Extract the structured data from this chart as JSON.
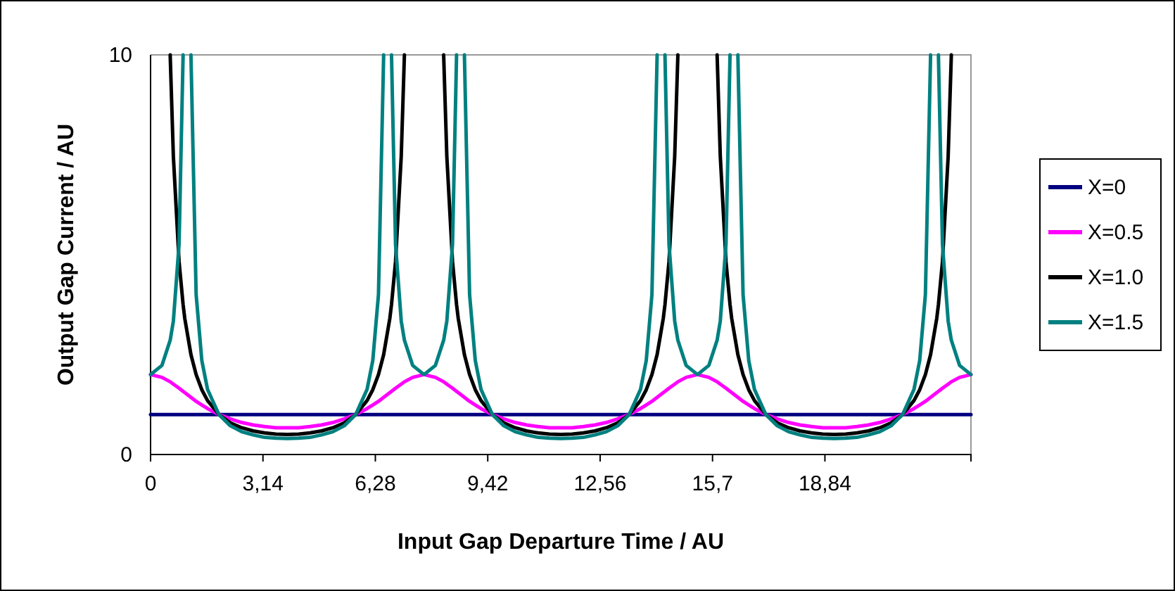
{
  "chart_data": {
    "type": "line",
    "xlabel": "Input Gap Departure Time / AU",
    "ylabel": "Output Gap Current / AU",
    "xlim": [
      0,
      22.92
    ],
    "xticks": [
      0,
      {
        "value": 3.14,
        "label": "3,14"
      },
      {
        "value": 6.28,
        "label": "6,28"
      },
      {
        "value": 9.42,
        "label": "9,42"
      },
      {
        "value": 12.56,
        "label": "12,56"
      },
      {
        "value": 15.7,
        "label": "15,7"
      },
      {
        "value": 18.84,
        "label": "18,84"
      }
    ],
    "ylim": [
      0,
      10
    ],
    "yticks": [
      0,
      10
    ],
    "grid": false,
    "legend": "right",
    "marker": "none",
    "line_style": "solid",
    "x": [
      0,
      0.318,
      0.548,
      0.637,
      0.796,
      0.909,
      0.955,
      1.128,
      1.273,
      1.432,
      1.592,
      1.91,
      2.228,
      2.547,
      2.865,
      3.183,
      3.502,
      3.82,
      4.138,
      4.457,
      4.775,
      5.093,
      5.412,
      5.73,
      6.048,
      6.208,
      6.367,
      6.512,
      6.685,
      6.731,
      6.844,
      7.003,
      7.092,
      7.322,
      7.64,
      7.958,
      8.188,
      8.277,
      8.436,
      8.549,
      8.595,
      8.768,
      8.913,
      9.072,
      9.232,
      9.55,
      9.868,
      10.187,
      10.505,
      10.823,
      11.142,
      11.46,
      11.778,
      12.097,
      12.415,
      12.733,
      13.052,
      13.37,
      13.688,
      13.848,
      14.007,
      14.152,
      14.325,
      14.371,
      14.484,
      14.643,
      14.732,
      14.962,
      15.28,
      15.598,
      15.828,
      15.917,
      16.076,
      16.189,
      16.235,
      16.408,
      16.553,
      16.712,
      16.872,
      17.19,
      17.508,
      17.827,
      18.145,
      18.463,
      18.782,
      19.1,
      19.418,
      19.737,
      20.055,
      20.373,
      20.692,
      21.01,
      21.328,
      21.488,
      21.647,
      21.792,
      21.965,
      22.011,
      22.124,
      22.283,
      22.372,
      22.602,
      22.92
    ],
    "series": [
      {
        "name": "X=0",
        "color": "#000080",
        "values": [
          1,
          1,
          1,
          1,
          1,
          1,
          1,
          1,
          1,
          1,
          1,
          1,
          1,
          1,
          1,
          1,
          1,
          1,
          1,
          1,
          1,
          1,
          1,
          1,
          1,
          1,
          1,
          1,
          1,
          1,
          1,
          1,
          1,
          1,
          1,
          1,
          1,
          1,
          1,
          1,
          1,
          1,
          1,
          1,
          1,
          1,
          1,
          1,
          1,
          1,
          1,
          1,
          1,
          1,
          1,
          1,
          1,
          1,
          1,
          1,
          1,
          1,
          1,
          1,
          1,
          1,
          1,
          1,
          1,
          1,
          1,
          1,
          1,
          1,
          1,
          1,
          1,
          1,
          1,
          1,
          1,
          1,
          1,
          1,
          1,
          1,
          1,
          1,
          1,
          1,
          1,
          1,
          1,
          1,
          1,
          1,
          1,
          1,
          1,
          1,
          1,
          1,
          1
        ]
      },
      {
        "name": "X=0.5",
        "color": "#ff00ff",
        "values": [
          2,
          1.93,
          1.82,
          1.76,
          1.66,
          1.58,
          1.55,
          1.43,
          1.33,
          1.24,
          1.15,
          1,
          0.89,
          0.8,
          0.74,
          0.7,
          0.67,
          0.67,
          0.67,
          0.7,
          0.74,
          0.8,
          0.89,
          1,
          1.15,
          1.24,
          1.33,
          1.43,
          1.55,
          1.58,
          1.66,
          1.76,
          1.82,
          1.93,
          2,
          1.93,
          1.82,
          1.76,
          1.66,
          1.58,
          1.55,
          1.43,
          1.33,
          1.24,
          1.15,
          1,
          0.89,
          0.8,
          0.74,
          0.7,
          0.67,
          0.67,
          0.67,
          0.7,
          0.74,
          0.8,
          0.89,
          1,
          1.15,
          1.24,
          1.33,
          1.43,
          1.55,
          1.58,
          1.66,
          1.76,
          1.82,
          1.93,
          2,
          1.93,
          1.82,
          1.76,
          1.66,
          1.58,
          1.55,
          1.43,
          1.33,
          1.24,
          1.15,
          1,
          0.89,
          0.8,
          0.74,
          0.7,
          0.67,
          0.67,
          0.67,
          0.7,
          0.74,
          0.8,
          0.89,
          1,
          1.15,
          1.24,
          1.33,
          1.43,
          1.55,
          1.58,
          1.66,
          1.76,
          1.82,
          1.93,
          2
        ]
      },
      {
        "name": "X=1.0",
        "color": "#000000",
        "values": [
          null,
          null,
          10,
          7.46,
          4.83,
          3.75,
          3.41,
          2.5,
          2,
          1.62,
          1.35,
          1,
          0.79,
          0.67,
          0.59,
          0.54,
          0.51,
          0.5,
          0.51,
          0.54,
          0.59,
          0.67,
          0.79,
          1,
          1.35,
          1.62,
          2,
          2.5,
          3.41,
          3.75,
          4.83,
          7.46,
          10,
          null,
          null,
          null,
          10,
          7.46,
          4.83,
          3.75,
          3.41,
          2.5,
          2,
          1.62,
          1.35,
          1,
          0.79,
          0.67,
          0.59,
          0.54,
          0.51,
          0.5,
          0.51,
          0.54,
          0.59,
          0.67,
          0.79,
          1,
          1.35,
          1.62,
          2,
          2.5,
          3.41,
          3.75,
          4.83,
          7.46,
          10,
          null,
          null,
          null,
          10,
          7.46,
          4.83,
          3.75,
          3.41,
          2.5,
          2,
          1.62,
          1.35,
          1,
          0.79,
          0.67,
          0.59,
          0.54,
          0.51,
          0.5,
          0.51,
          0.54,
          0.59,
          0.67,
          0.79,
          1,
          1.35,
          1.62,
          2,
          2.5,
          3.41,
          3.75,
          4.83,
          7.46,
          10,
          null,
          null
        ]
      },
      {
        "name": "X=1.5",
        "color": "#008080",
        "values": [
          2,
          2.23,
          2.86,
          3.34,
          5.26,
          10,
          null,
          10,
          4,
          2.35,
          1.63,
          1,
          0.72,
          0.57,
          0.49,
          0.43,
          0.41,
          0.4,
          0.41,
          0.43,
          0.49,
          0.57,
          0.72,
          1,
          1.63,
          2.35,
          4,
          10,
          null,
          10,
          5.26,
          3.34,
          2.86,
          2.23,
          2,
          2.23,
          2.86,
          3.34,
          5.26,
          10,
          null,
          10,
          4,
          2.35,
          1.63,
          1,
          0.72,
          0.57,
          0.49,
          0.43,
          0.41,
          0.4,
          0.41,
          0.43,
          0.49,
          0.57,
          0.72,
          1,
          1.63,
          2.35,
          4,
          10,
          null,
          10,
          5.26,
          3.34,
          2.86,
          2.23,
          2,
          2.23,
          2.86,
          3.34,
          5.26,
          10,
          null,
          10,
          4,
          2.35,
          1.63,
          1,
          0.72,
          0.57,
          0.49,
          0.43,
          0.41,
          0.4,
          0.41,
          0.43,
          0.49,
          0.57,
          0.72,
          1,
          1.63,
          2.35,
          4,
          10,
          null,
          10,
          5.26,
          3.34,
          2.86,
          2.23,
          2
        ]
      }
    ]
  }
}
